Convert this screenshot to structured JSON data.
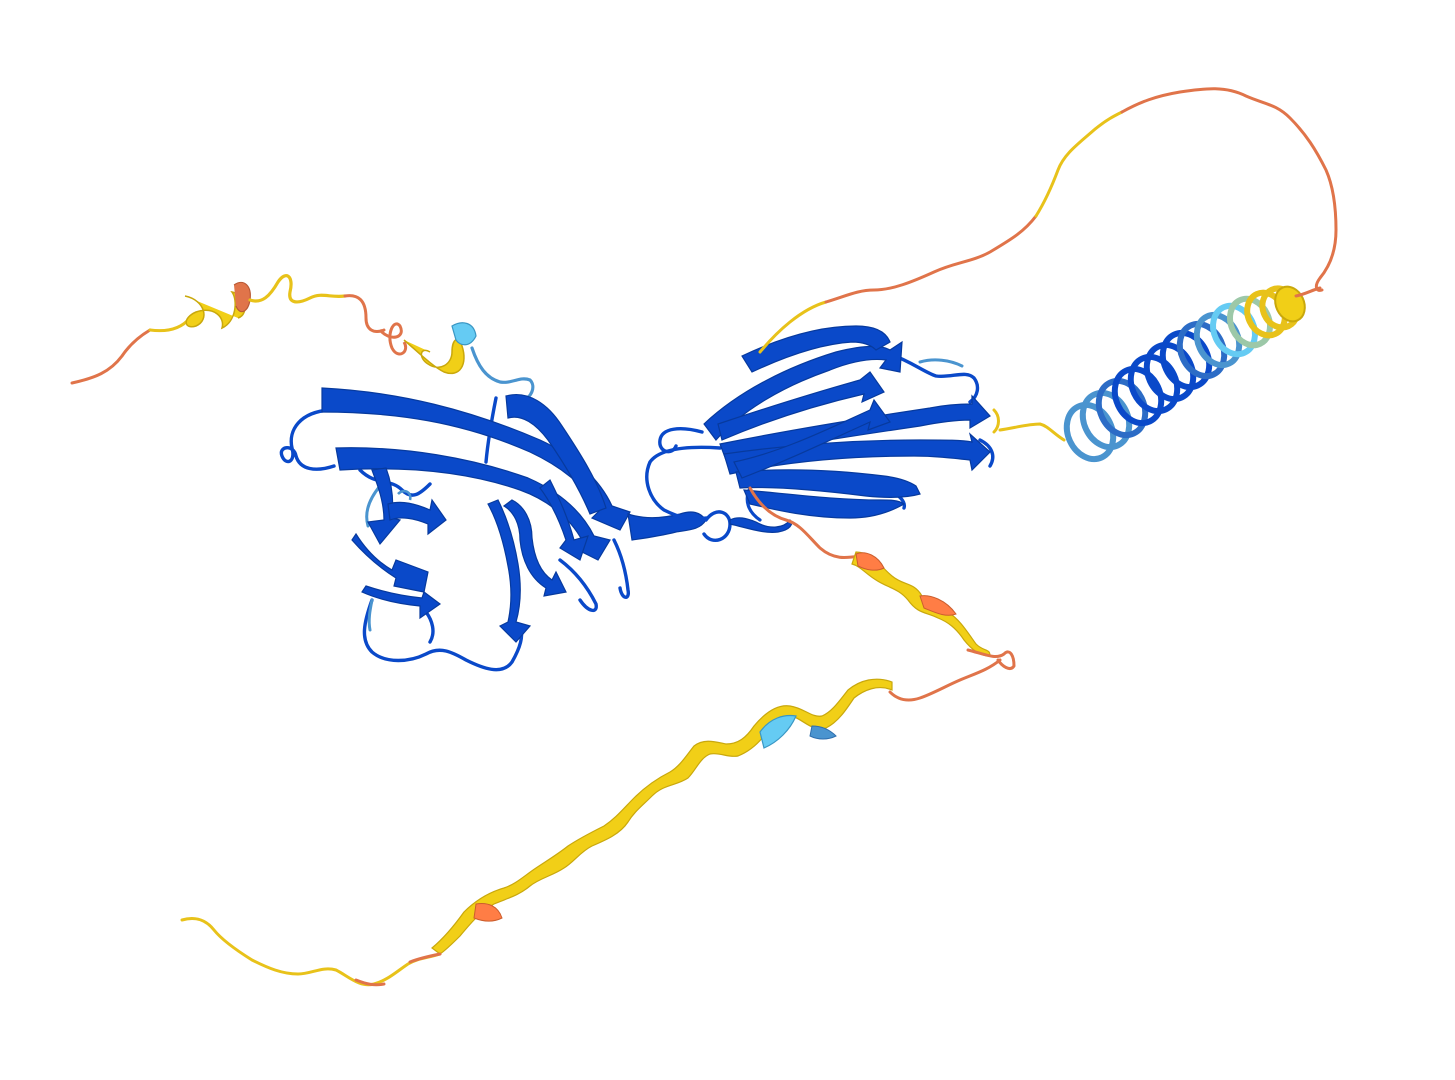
{
  "image": {
    "subject": "protein-structure-cartoon",
    "background": "#ffffff"
  },
  "confidence_colors": {
    "very_high": "#0053d6",
    "confident": "#65cbf3",
    "low": "#ffdb13",
    "very_low": "#ff7d45"
  }
}
